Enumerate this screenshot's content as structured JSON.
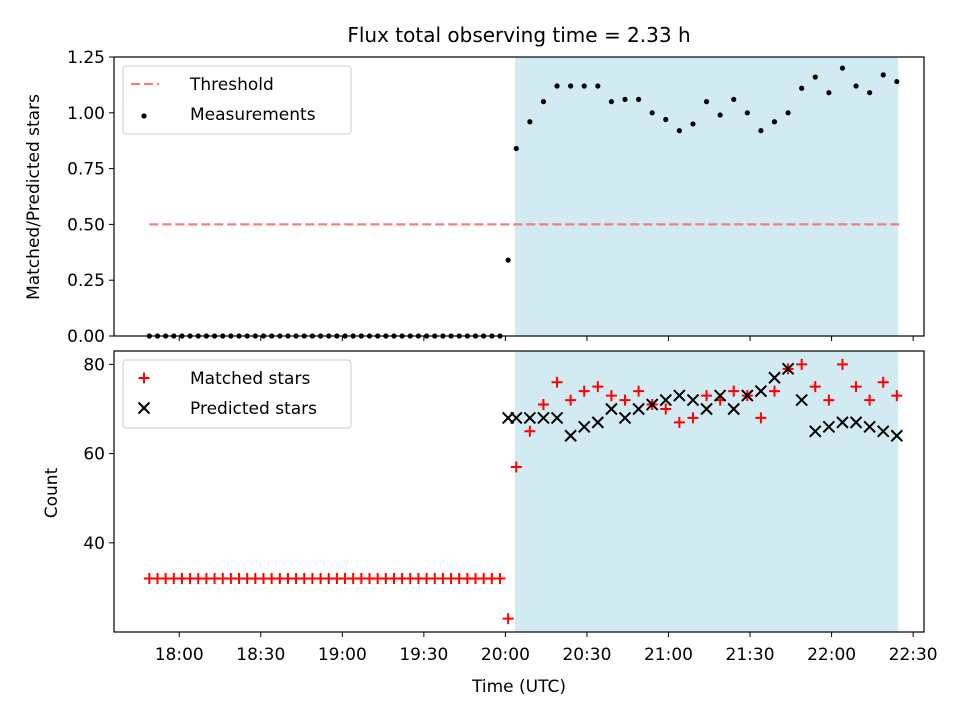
{
  "chart_data": {
    "title": "Flux total observing time = 2.33 h",
    "xlabel": "Time (UTC)",
    "x_unit": "minutes after 17:00 UTC",
    "xlim": [
      36,
      334
    ],
    "x_tick_labels": [
      "18:00",
      "18:30",
      "19:00",
      "19:30",
      "20:00",
      "20:30",
      "21:00",
      "21:30",
      "22:00",
      "22:30"
    ],
    "x_tick_values": [
      60,
      90,
      120,
      150,
      180,
      210,
      240,
      270,
      300,
      330
    ],
    "shaded_interval": {
      "from": 183.5,
      "to": 324.5,
      "color": "#add8e6"
    },
    "panels": [
      {
        "type": "scatter",
        "ylabel": "Matched/Predicted stars",
        "ylim": [
          0,
          1.25
        ],
        "y_tick_labels": [
          "0.00",
          "0.25",
          "0.50",
          "0.75",
          "1.00",
          "1.25"
        ],
        "y_tick_values": [
          0,
          0.25,
          0.5,
          0.75,
          1.0,
          1.25
        ],
        "legend_position": "top-left",
        "series": [
          {
            "name": "Threshold",
            "kind": "dashed-line",
            "color": "#f08080",
            "x": [
              49,
              325
            ],
            "y": [
              0.5,
              0.5
            ]
          },
          {
            "name": "Measurements",
            "kind": "dot",
            "color": "#000000",
            "x": [
              49,
              52,
              55,
              58,
              61,
              64,
              67,
              70,
              73,
              76,
              79,
              82,
              85,
              88,
              91,
              94,
              97,
              100,
              103,
              106,
              109,
              112,
              115,
              118,
              121,
              124,
              127,
              130,
              133,
              136,
              139,
              142,
              145,
              148,
              151,
              154,
              157,
              160,
              163,
              166,
              169,
              172,
              175,
              178,
              181,
              184,
              189,
              194,
              199,
              204,
              209,
              214,
              219,
              224,
              229,
              234,
              239,
              244,
              249,
              254,
              259,
              264,
              269,
              274,
              279,
              284,
              289,
              294,
              299,
              304,
              309,
              314,
              319,
              324
            ],
            "y": [
              0,
              0,
              0,
              0,
              0,
              0,
              0,
              0,
              0,
              0,
              0,
              0,
              0,
              0,
              0,
              0,
              0,
              0,
              0,
              0,
              0,
              0,
              0,
              0,
              0,
              0,
              0,
              0,
              0,
              0,
              0,
              0,
              0,
              0,
              0,
              0,
              0,
              0,
              0,
              0,
              0,
              0,
              0,
              0,
              0.34,
              0.84,
              0.96,
              1.05,
              1.12,
              1.12,
              1.12,
              1.12,
              1.05,
              1.06,
              1.06,
              1.0,
              0.97,
              0.92,
              0.95,
              1.05,
              0.99,
              1.06,
              1.0,
              0.92,
              0.96,
              1.0,
              1.11,
              1.16,
              1.09,
              1.2,
              1.12,
              1.09,
              1.17,
              1.14
            ]
          }
        ]
      },
      {
        "type": "scatter",
        "ylabel": "Count",
        "ylim": [
          20,
          83
        ],
        "y_tick_labels": [
          "40",
          "60",
          "80"
        ],
        "y_tick_values": [
          40,
          60,
          80
        ],
        "legend_position": "top-left",
        "series": [
          {
            "name": "Matched stars",
            "kind": "plus",
            "color": "#ff0000",
            "x": [
              49,
              52,
              55,
              58,
              61,
              64,
              67,
              70,
              73,
              76,
              79,
              82,
              85,
              88,
              91,
              94,
              97,
              100,
              103,
              106,
              109,
              112,
              115,
              118,
              121,
              124,
              127,
              130,
              133,
              136,
              139,
              142,
              145,
              148,
              151,
              154,
              157,
              160,
              163,
              166,
              169,
              172,
              175,
              178,
              181,
              184,
              189,
              194,
              199,
              204,
              209,
              214,
              219,
              224,
              229,
              234,
              239,
              244,
              249,
              254,
              259,
              264,
              269,
              274,
              279,
              284,
              289,
              294,
              299,
              304,
              309,
              314,
              319,
              324
            ],
            "y": [
              32,
              32,
              32,
              32,
              32,
              32,
              32,
              32,
              32,
              32,
              32,
              32,
              32,
              32,
              32,
              32,
              32,
              32,
              32,
              32,
              32,
              32,
              32,
              32,
              32,
              32,
              32,
              32,
              32,
              32,
              32,
              32,
              32,
              32,
              32,
              32,
              32,
              32,
              32,
              32,
              32,
              32,
              32,
              32,
              23,
              57,
              65,
              71,
              76,
              72,
              74,
              75,
              73,
              72,
              74,
              71,
              70,
              67,
              68,
              73,
              72,
              74,
              73,
              68,
              74,
              79,
              80,
              75,
              72,
              80,
              75,
              72,
              76,
              73
            ]
          },
          {
            "name": "Predicted stars",
            "kind": "cross",
            "color": "#000000",
            "x": [
              181,
              184,
              189,
              194,
              199,
              204,
              209,
              214,
              219,
              224,
              229,
              234,
              239,
              244,
              249,
              254,
              259,
              264,
              269,
              274,
              279,
              284,
              289,
              294,
              299,
              304,
              309,
              314,
              319,
              324
            ],
            "y": [
              68,
              68,
              68,
              68,
              68,
              64,
              66,
              67,
              70,
              68,
              70,
              71,
              72,
              73,
              72,
              70,
              73,
              70,
              73,
              74,
              77,
              79,
              72,
              65,
              66,
              67,
              67,
              66,
              65,
              64
            ]
          }
        ]
      }
    ]
  }
}
